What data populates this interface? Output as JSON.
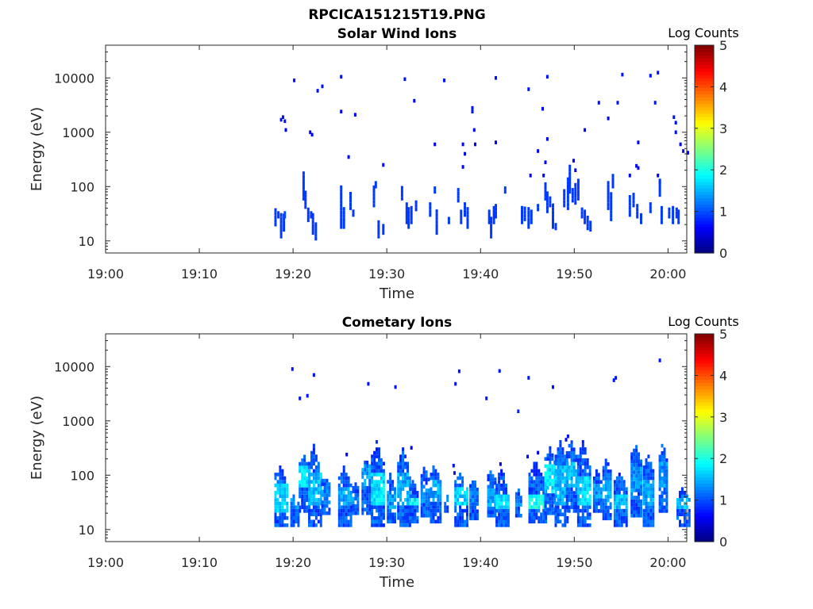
{
  "figure": {
    "title": "RPCICA151215T19.PNG"
  },
  "chart_data": [
    {
      "type": "heatmap",
      "title": "Solar Wind Ions",
      "xlabel": "Time",
      "ylabel": "Energy (eV)",
      "xticks": [
        "19:00",
        "19:10",
        "19:20",
        "19:30",
        "19:40",
        "19:50",
        "20:00"
      ],
      "xlim_minutes": [
        0,
        62
      ],
      "yscale": "log",
      "yticks": [
        "10",
        "100",
        "1000",
        "10000"
      ],
      "ylim": [
        6,
        40000
      ],
      "colorbar": {
        "label": "Log Counts",
        "min": 0,
        "max": 5,
        "ticks": [
          "0",
          "1",
          "2",
          "3",
          "4",
          "5"
        ]
      },
      "cell_size": {
        "minutes": 0.25,
        "log_energy_bins_per_decade": 15
      },
      "cells": [
        [
          20.0,
          9000,
          0.7
        ],
        [
          22.5,
          5800,
          0.7
        ],
        [
          23.0,
          7000,
          0.7
        ],
        [
          25.0,
          10500,
          0.7
        ],
        [
          25.0,
          2400,
          0.6
        ],
        [
          26.5,
          2100,
          0.6
        ],
        [
          31.8,
          9500,
          0.7
        ],
        [
          32.8,
          3800,
          0.6
        ],
        [
          36.0,
          9000,
          0.7
        ],
        [
          39.0,
          2800,
          0.7
        ],
        [
          39.0,
          2400,
          0.7
        ],
        [
          39.2,
          1100,
          0.6
        ],
        [
          41.5,
          10000,
          0.7
        ],
        [
          45.0,
          6200,
          0.7
        ],
        [
          46.5,
          2700,
          0.6
        ],
        [
          47.0,
          10500,
          0.7
        ],
        [
          51.0,
          1100,
          0.6
        ],
        [
          52.5,
          3500,
          0.7
        ],
        [
          53.5,
          1800,
          0.6
        ],
        [
          54.5,
          3500,
          0.7
        ],
        [
          55.0,
          11500,
          0.7
        ],
        [
          58.0,
          11000,
          0.7
        ],
        [
          58.5,
          3500,
          0.7
        ],
        [
          58.8,
          12500,
          0.7
        ],
        [
          60.5,
          1900,
          0.7
        ],
        [
          60.7,
          1500,
          0.7
        ],
        [
          60.7,
          1000,
          0.7
        ],
        [
          61.2,
          600,
          0.6
        ],
        [
          61.5,
          450,
          0.6
        ],
        [
          18.6,
          1700,
          0.7
        ],
        [
          18.8,
          1900,
          0.7
        ],
        [
          19.0,
          1600,
          0.7
        ],
        [
          19.1,
          1100,
          0.6
        ],
        [
          21.7,
          1000,
          0.6
        ],
        [
          21.9,
          900,
          0.6
        ],
        [
          25.8,
          350,
          0.6
        ],
        [
          29.5,
          250,
          0.6
        ],
        [
          35.0,
          600,
          0.6
        ],
        [
          38.0,
          600,
          0.6
        ],
        [
          38.2,
          400,
          0.6
        ],
        [
          38.0,
          230,
          0.6
        ],
        [
          39.3,
          600,
          0.6
        ],
        [
          41.5,
          650,
          0.6
        ],
        [
          45.2,
          160,
          0.6
        ],
        [
          46.0,
          450,
          0.6
        ],
        [
          46.8,
          280,
          0.6
        ],
        [
          47.0,
          750,
          0.6
        ],
        [
          46.6,
          160,
          0.6
        ],
        [
          49.8,
          300,
          0.6
        ],
        [
          50.0,
          200,
          0.6
        ],
        [
          55.8,
          160,
          0.6
        ],
        [
          56.7,
          650,
          0.6
        ],
        [
          56.5,
          240,
          0.6
        ],
        [
          56.7,
          220,
          0.6
        ],
        [
          58.8,
          160,
          0.6
        ],
        [
          59.0,
          120,
          0.6
        ],
        [
          62.0,
          420,
          0.6
        ]
      ],
      "columns": [
        [
          18.0,
          20,
          42,
          0.9
        ],
        [
          18.3,
          28,
          38,
          0.9
        ],
        [
          18.6,
          12,
          35,
          0.9
        ],
        [
          18.9,
          16,
          32,
          0.9
        ],
        [
          19.0,
          28,
          35,
          1.0
        ],
        [
          21.0,
          60,
          180,
          0.9
        ],
        [
          21.2,
          42,
          90,
          0.9
        ],
        [
          21.5,
          24,
          40,
          0.9
        ],
        [
          21.8,
          28,
          38,
          0.9
        ],
        [
          22.0,
          14,
          34,
          0.9
        ],
        [
          22.3,
          11,
          22,
          0.9
        ],
        [
          25.0,
          18,
          110,
          0.9
        ],
        [
          25.3,
          18,
          40,
          0.9
        ],
        [
          26.0,
          40,
          75,
          0.9
        ],
        [
          26.3,
          30,
          38,
          0.9
        ],
        [
          28.5,
          45,
          100,
          0.9
        ],
        [
          28.7,
          100,
          130,
          0.9
        ],
        [
          29.0,
          12,
          24,
          0.9
        ],
        [
          29.5,
          14,
          22,
          0.9
        ],
        [
          31.5,
          60,
          100,
          0.9
        ],
        [
          32.0,
          22,
          50,
          0.9
        ],
        [
          32.2,
          18,
          40,
          0.9
        ],
        [
          32.5,
          22,
          42,
          0.9
        ],
        [
          33.0,
          38,
          60,
          0.9
        ],
        [
          34.5,
          30,
          50,
          0.9
        ],
        [
          35.0,
          80,
          95,
          0.9
        ],
        [
          35.2,
          14,
          38,
          0.9
        ],
        [
          36.5,
          22,
          28,
          0.9
        ],
        [
          37.5,
          55,
          95,
          0.9
        ],
        [
          37.8,
          22,
          40,
          0.9
        ],
        [
          38.2,
          30,
          52,
          0.9
        ],
        [
          38.5,
          18,
          45,
          0.9
        ],
        [
          40.8,
          22,
          40,
          0.9
        ],
        [
          41.0,
          12,
          26,
          0.9
        ],
        [
          41.3,
          22,
          42,
          0.9
        ],
        [
          41.5,
          28,
          45,
          0.9
        ],
        [
          42.5,
          80,
          95,
          0.9
        ],
        [
          44.3,
          22,
          45,
          0.9
        ],
        [
          44.6,
          25,
          45,
          0.9
        ],
        [
          45.0,
          18,
          45,
          0.9
        ],
        [
          45.3,
          22,
          40,
          0.9
        ],
        [
          46.0,
          38,
          50,
          0.9
        ],
        [
          46.8,
          60,
          120,
          0.9
        ],
        [
          47.0,
          35,
          85,
          0.9
        ],
        [
          47.3,
          45,
          70,
          0.9
        ],
        [
          47.6,
          18,
          50,
          0.9
        ],
        [
          47.9,
          17,
          22,
          0.9
        ],
        [
          48.8,
          45,
          85,
          0.9
        ],
        [
          49.2,
          40,
          150,
          0.9
        ],
        [
          49.4,
          80,
          250,
          0.9
        ],
        [
          49.7,
          55,
          90,
          0.9
        ],
        [
          50.0,
          50,
          120,
          0.9
        ],
        [
          50.3,
          60,
          130,
          0.9
        ],
        [
          50.7,
          28,
          40,
          0.9
        ],
        [
          51.0,
          22,
          40,
          0.9
        ],
        [
          51.3,
          17,
          28,
          0.9
        ],
        [
          51.6,
          16,
          22,
          0.9
        ],
        [
          53.5,
          40,
          120,
          0.9
        ],
        [
          53.8,
          25,
          80,
          0.9
        ],
        [
          54.0,
          100,
          160,
          0.9
        ],
        [
          55.8,
          30,
          65,
          0.9
        ],
        [
          56.2,
          45,
          80,
          0.9
        ],
        [
          56.6,
          28,
          45,
          0.9
        ],
        [
          57.0,
          22,
          32,
          0.9
        ],
        [
          58.0,
          35,
          55,
          0.9
        ],
        [
          59.0,
          70,
          140,
          0.9
        ],
        [
          59.2,
          22,
          45,
          0.9
        ],
        [
          60.0,
          28,
          40,
          0.9
        ],
        [
          60.4,
          22,
          45,
          0.9
        ],
        [
          60.8,
          28,
          40,
          0.9
        ],
        [
          61.0,
          22,
          38,
          0.9
        ]
      ]
    },
    {
      "type": "heatmap",
      "title": "Cometary Ions",
      "xlabel": "Time",
      "ylabel": "Energy (eV)",
      "xticks": [
        "19:00",
        "19:10",
        "19:20",
        "19:30",
        "19:40",
        "19:50",
        "20:00"
      ],
      "xlim_minutes": [
        0,
        62
      ],
      "yscale": "log",
      "yticks": [
        "10",
        "100",
        "1000",
        "10000"
      ],
      "ylim": [
        6,
        40000
      ],
      "colorbar": {
        "label": "Log Counts",
        "min": 0,
        "max": 5,
        "ticks": [
          "0",
          "1",
          "2",
          "3",
          "4",
          "5"
        ]
      },
      "cell_size": {
        "minutes": 0.25,
        "log_energy_bins_per_decade": 15
      },
      "cells": [
        [
          19.8,
          9000,
          0.7
        ],
        [
          20.6,
          2600,
          0.7
        ],
        [
          21.4,
          2900,
          0.7
        ],
        [
          22.1,
          7000,
          0.7
        ],
        [
          27.9,
          4800,
          0.7
        ],
        [
          30.8,
          4200,
          0.7
        ],
        [
          37.2,
          4800,
          0.7
        ],
        [
          37.6,
          8200,
          0.7
        ],
        [
          40.5,
          2600,
          0.7
        ],
        [
          41.9,
          8300,
          0.7
        ],
        [
          43.9,
          1500,
          0.8
        ],
        [
          45.0,
          6200,
          0.7
        ],
        [
          47.6,
          4200,
          0.7
        ],
        [
          54.1,
          5600,
          0.7
        ],
        [
          54.3,
          6200,
          0.7
        ],
        [
          59.0,
          13000,
          0.7
        ],
        [
          25.6,
          240,
          0.6
        ],
        [
          32.5,
          320,
          0.6
        ],
        [
          37.0,
          150,
          0.7
        ],
        [
          37.1,
          110,
          0.7
        ],
        [
          42.0,
          160,
          0.6
        ],
        [
          44.9,
          220,
          0.6
        ],
        [
          46.0,
          260,
          0.6
        ],
        [
          49.0,
          450,
          0.6
        ],
        [
          49.2,
          520,
          0.7
        ],
        [
          51.0,
          300,
          0.6
        ]
      ],
      "bursts": [
        {
          "t": 18.0,
          "w": 1.3,
          "lo": 12,
          "hi": 170,
          "peak": 1.9,
          "core": [
            22,
            70
          ]
        },
        {
          "t": 19.7,
          "w": 0.9,
          "lo": 12,
          "hi": 45,
          "peak": 1.6,
          "core": [
            25,
            40
          ]
        },
        {
          "t": 20.6,
          "w": 1.1,
          "lo": 22,
          "hi": 250,
          "peak": 2.0,
          "core": [
            60,
            140
          ]
        },
        {
          "t": 21.6,
          "w": 1.3,
          "lo": 12,
          "hi": 380,
          "peak": 1.8,
          "core": [
            30,
            120
          ]
        },
        {
          "t": 23.0,
          "w": 0.9,
          "lo": 20,
          "hi": 110,
          "peak": 1.5,
          "core": [
            30,
            60
          ]
        },
        {
          "t": 24.8,
          "w": 1.3,
          "lo": 12,
          "hi": 160,
          "peak": 1.7,
          "core": [
            30,
            60
          ]
        },
        {
          "t": 26.3,
          "w": 0.7,
          "lo": 20,
          "hi": 80,
          "peak": 1.5,
          "core": [
            30,
            45
          ]
        },
        {
          "t": 27.3,
          "w": 1.1,
          "lo": 20,
          "hi": 220,
          "peak": 1.6,
          "core": [
            60,
            150
          ]
        },
        {
          "t": 28.3,
          "w": 1.5,
          "lo": 12,
          "hi": 450,
          "peak": 2.0,
          "core": [
            28,
            110
          ]
        },
        {
          "t": 30.0,
          "w": 0.8,
          "lo": 14,
          "hi": 110,
          "peak": 1.6,
          "core": [
            25,
            50
          ]
        },
        {
          "t": 31.1,
          "w": 1.3,
          "lo": 12,
          "hi": 330,
          "peak": 1.7,
          "core": [
            30,
            120
          ]
        },
        {
          "t": 32.4,
          "w": 0.8,
          "lo": 14,
          "hi": 90,
          "peak": 2.1,
          "core": [
            28,
            40
          ]
        },
        {
          "t": 33.6,
          "w": 0.9,
          "lo": 18,
          "hi": 150,
          "peak": 1.6,
          "core": [
            30,
            60
          ]
        },
        {
          "t": 34.6,
          "w": 1.1,
          "lo": 14,
          "hi": 180,
          "peak": 1.7,
          "core": [
            35,
            80
          ]
        },
        {
          "t": 36.1,
          "w": 0.4,
          "lo": 22,
          "hi": 45,
          "peak": 1.4,
          "core": [
            28,
            35
          ]
        },
        {
          "t": 37.2,
          "w": 1.3,
          "lo": 12,
          "hi": 120,
          "peak": 1.9,
          "core": [
            28,
            60
          ]
        },
        {
          "t": 38.8,
          "w": 0.8,
          "lo": 16,
          "hi": 100,
          "peak": 1.5,
          "core": [
            28,
            50
          ]
        },
        {
          "t": 40.7,
          "w": 1.0,
          "lo": 18,
          "hi": 140,
          "peak": 1.7,
          "core": [
            28,
            55
          ]
        },
        {
          "t": 41.6,
          "w": 1.4,
          "lo": 12,
          "hi": 130,
          "peak": 2.0,
          "core": [
            25,
            45
          ]
        },
        {
          "t": 43.7,
          "w": 0.6,
          "lo": 18,
          "hi": 60,
          "peak": 1.5,
          "core": [
            25,
            40
          ]
        },
        {
          "t": 45.1,
          "w": 1.8,
          "lo": 14,
          "hi": 180,
          "peak": 2.2,
          "core": [
            25,
            45
          ]
        },
        {
          "t": 46.8,
          "w": 1.2,
          "lo": 20,
          "hi": 380,
          "peak": 2.0,
          "core": [
            45,
            160
          ]
        },
        {
          "t": 47.9,
          "w": 1.5,
          "lo": 12,
          "hi": 450,
          "peak": 1.8,
          "core": [
            30,
            150
          ]
        },
        {
          "t": 49.1,
          "w": 1.2,
          "lo": 22,
          "hi": 500,
          "peak": 1.8,
          "core": [
            60,
            180
          ]
        },
        {
          "t": 50.3,
          "w": 1.4,
          "lo": 12,
          "hi": 420,
          "peak": 1.9,
          "core": [
            30,
            100
          ]
        },
        {
          "t": 52.0,
          "w": 0.8,
          "lo": 22,
          "hi": 140,
          "peak": 1.6,
          "core": [
            35,
            70
          ]
        },
        {
          "t": 53.0,
          "w": 1.0,
          "lo": 16,
          "hi": 220,
          "peak": 1.7,
          "core": [
            30,
            80
          ]
        },
        {
          "t": 54.2,
          "w": 1.4,
          "lo": 12,
          "hi": 120,
          "peak": 1.8,
          "core": [
            25,
            45
          ]
        },
        {
          "t": 56.0,
          "w": 1.2,
          "lo": 18,
          "hi": 430,
          "peak": 1.6,
          "core": [
            50,
            150
          ]
        },
        {
          "t": 57.3,
          "w": 1.2,
          "lo": 12,
          "hi": 250,
          "peak": 1.7,
          "core": [
            28,
            80
          ]
        },
        {
          "t": 59.0,
          "w": 0.9,
          "lo": 22,
          "hi": 430,
          "peak": 1.6,
          "core": [
            60,
            180
          ]
        },
        {
          "t": 60.9,
          "w": 1.5,
          "lo": 12,
          "hi": 60,
          "peak": 1.8,
          "core": [
            25,
            40
          ]
        }
      ]
    }
  ]
}
